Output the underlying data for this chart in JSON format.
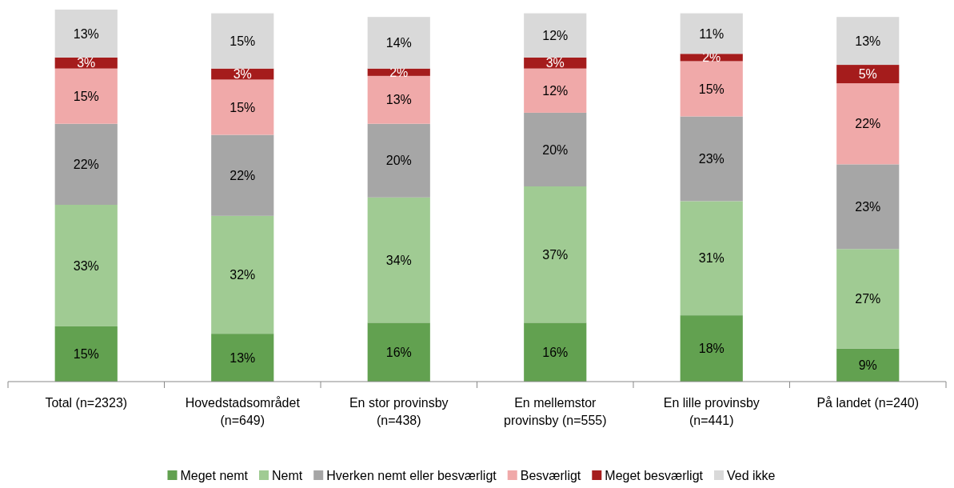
{
  "chart_data": {
    "type": "bar",
    "stacked": true,
    "legend": "bottom",
    "categories": [
      "Total (n=2323)",
      "Hovedstadsområdet (n=649)",
      "En stor provinsby (n=438)",
      "En mellemstor provinsby (n=555)",
      "En lille provinsby (n=441)",
      "På landet (n=240)"
    ],
    "series": [
      {
        "name": "Meget nemt",
        "color": "#62a150",
        "values": [
          15,
          13,
          16,
          16,
          18,
          9
        ],
        "value_labels": [
          "15%",
          "13%",
          "16%",
          "16%",
          "18%",
          "9%"
        ]
      },
      {
        "name": "Nemt",
        "color": "#a0cb93",
        "values": [
          33,
          32,
          34,
          37,
          31,
          27
        ],
        "value_labels": [
          "33%",
          "32%",
          "34%",
          "37%",
          "31%",
          "27%"
        ]
      },
      {
        "name": "Hverken nemt eller besværligt",
        "color": "#a6a6a6",
        "values": [
          22,
          22,
          20,
          20,
          23,
          23
        ],
        "value_labels": [
          "22%",
          "22%",
          "20%",
          "20%",
          "23%",
          "23%"
        ]
      },
      {
        "name": "Besværligt",
        "color": "#f0a9a9",
        "values": [
          15,
          15,
          13,
          12,
          15,
          22
        ],
        "value_labels": [
          "15%",
          "15%",
          "13%",
          "12%",
          "15%",
          "22%"
        ]
      },
      {
        "name": "Meget besværligt",
        "color": "#a51c1c",
        "values": [
          3,
          3,
          2,
          3,
          2,
          5
        ],
        "value_labels": [
          "3%",
          "3%",
          "2%",
          "3%",
          "2%",
          "5%"
        ]
      },
      {
        "name": "Ved ikke",
        "color": "#d9d9d9",
        "values": [
          13,
          15,
          14,
          12,
          11,
          13
        ],
        "value_labels": [
          "13%",
          "15%",
          "14%",
          "12%",
          "11%",
          "13%"
        ]
      }
    ]
  }
}
